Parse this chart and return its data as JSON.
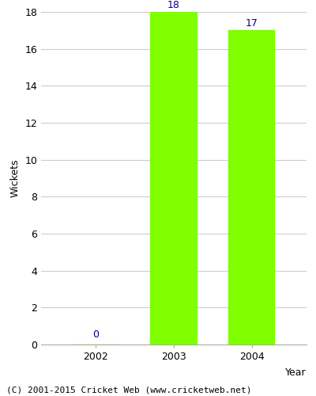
{
  "years": [
    "2002",
    "2003",
    "2004"
  ],
  "values": [
    0,
    18,
    17
  ],
  "bar_color": "#7fff00",
  "bar_edge_color": "#7fff00",
  "label_color": "#00008b",
  "ylabel": "Wickets",
  "xlabel": "Year",
  "ylim": [
    0,
    18
  ],
  "yticks": [
    0,
    2,
    4,
    6,
    8,
    10,
    12,
    14,
    16,
    18
  ],
  "title": "",
  "footer": "(C) 2001-2015 Cricket Web (www.cricketweb.net)",
  "bar_width": 0.6,
  "label_fontsize": 9,
  "axis_label_fontsize": 9,
  "tick_fontsize": 9,
  "footer_fontsize": 8
}
